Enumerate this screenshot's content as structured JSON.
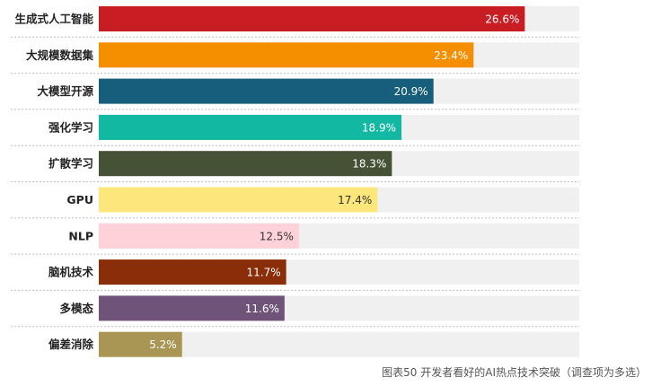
{
  "chart_data": {
    "type": "bar",
    "orientation": "horizontal",
    "categories": [
      "生成式人工智能",
      "大规模数据集",
      "大模型开源",
      "强化学习",
      "扩散学习",
      "GPU",
      "NLP",
      "脑机技术",
      "多模态",
      "偏差消除"
    ],
    "values": [
      26.6,
      23.4,
      20.9,
      18.9,
      18.3,
      17.4,
      12.5,
      11.7,
      11.6,
      5.2
    ],
    "value_labels": [
      "26.6%",
      "23.4%",
      "20.9%",
      "18.9%",
      "18.3%",
      "17.4%",
      "12.5%",
      "11.7%",
      "11.6%",
      "5.2%"
    ],
    "colors": [
      "#c91d24",
      "#f58f00",
      "#175e7d",
      "#12b8a2",
      "#465235",
      "#fde67c",
      "#ffd1d9",
      "#8a2e0a",
      "#6f5379",
      "#aa9654"
    ],
    "value_label_colors": [
      "#ffffff",
      "#ffffff",
      "#ffffff",
      "#ffffff",
      "#ffffff",
      "#333333",
      "#333333",
      "#ffffff",
      "#ffffff",
      "#ffffff"
    ],
    "track_color": "#f0f0f0",
    "xlim": [
      0,
      30
    ],
    "unit": "%",
    "caption": "图表50 开发者看好的AI热点技术突破（调查项为多选）"
  }
}
